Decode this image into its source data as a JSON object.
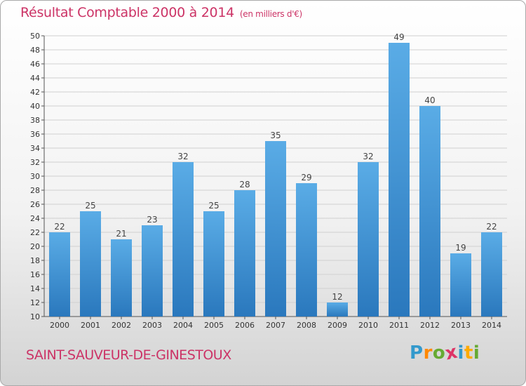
{
  "header": {
    "title": "Résultat Comptable 2000 à 2014",
    "subtitle": "(en milliers d'€)"
  },
  "footer": {
    "place": "SAINT-SAUVEUR-DE-GINESTOUX",
    "logo_text": "Proxiti",
    "logo_letters": [
      "P",
      "r",
      "o",
      "x",
      "i",
      "t",
      "i"
    ],
    "logo_colors": [
      "#3399cc",
      "#ff8800",
      "#66aa33",
      "#dd3366",
      "#3399cc",
      "#ffaa00",
      "#66aa33"
    ]
  },
  "colors": {
    "title": "#cc3366",
    "bar_top": "#5aace6",
    "bar_bottom": "#2a78bd",
    "grid": "#d0d0d0",
    "axis_text": "#333333"
  },
  "chart_data": {
    "type": "bar",
    "title": "Résultat Comptable 2000 à 2014",
    "subtitle": "(en milliers d'€)",
    "xlabel": "",
    "ylabel": "",
    "categories": [
      "2000",
      "2001",
      "2002",
      "2003",
      "2004",
      "2005",
      "2006",
      "2007",
      "2008",
      "2009",
      "2010",
      "2011",
      "2012",
      "2013",
      "2014"
    ],
    "values": [
      22,
      25,
      21,
      23,
      32,
      25,
      28,
      35,
      29,
      12,
      32,
      49,
      40,
      19,
      22
    ],
    "ylim": [
      10,
      50
    ],
    "yticks": [
      10,
      12,
      14,
      16,
      18,
      20,
      22,
      24,
      26,
      28,
      30,
      32,
      34,
      36,
      38,
      40,
      42,
      44,
      46,
      48,
      50
    ],
    "grid": true
  }
}
